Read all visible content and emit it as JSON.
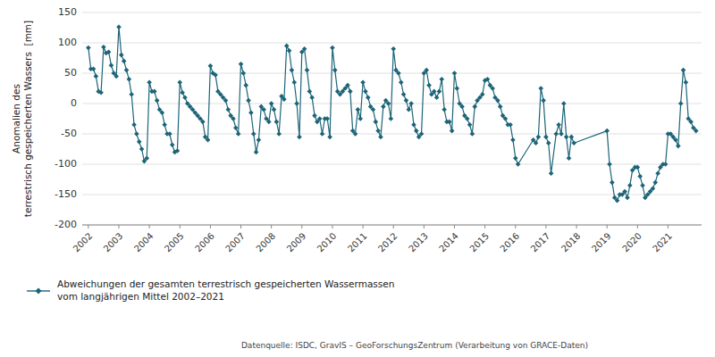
{
  "chart_data": {
    "type": "line",
    "ylabel": "Anomalien des\nterrestrisch gespeicherten Wassers  [mm]",
    "source": "Datenquelle: ISDC, GravIS – GeoForschungsZentrum (Verarbeitung von GRACE-Daten)",
    "x": [
      2002.0,
      2002.083,
      2002.167,
      2002.25,
      2002.333,
      2002.417,
      2002.5,
      2002.583,
      2002.667,
      2002.75,
      2002.833,
      2002.917,
      2003.0,
      2003.083,
      2003.167,
      2003.25,
      2003.333,
      2003.417,
      2003.5,
      2003.583,
      2003.667,
      2003.75,
      2003.833,
      2003.917,
      2004.0,
      2004.083,
      2004.167,
      2004.25,
      2004.333,
      2004.417,
      2004.5,
      2004.583,
      2004.667,
      2004.75,
      2004.833,
      2004.917,
      2005.0,
      2005.083,
      2005.167,
      2005.25,
      2005.333,
      2005.417,
      2005.5,
      2005.583,
      2005.667,
      2005.75,
      2005.833,
      2005.917,
      2006.0,
      2006.083,
      2006.167,
      2006.25,
      2006.333,
      2006.417,
      2006.5,
      2006.583,
      2006.667,
      2006.75,
      2006.833,
      2006.917,
      2007.0,
      2007.083,
      2007.167,
      2007.25,
      2007.333,
      2007.417,
      2007.5,
      2007.583,
      2007.667,
      2007.75,
      2007.833,
      2007.917,
      2008.0,
      2008.083,
      2008.167,
      2008.25,
      2008.333,
      2008.417,
      2008.5,
      2008.583,
      2008.667,
      2008.75,
      2008.833,
      2008.917,
      2009.0,
      2009.083,
      2009.167,
      2009.25,
      2009.333,
      2009.417,
      2009.5,
      2009.583,
      2009.667,
      2009.75,
      2009.833,
      2009.917,
      2010.0,
      2010.083,
      2010.167,
      2010.25,
      2010.333,
      2010.417,
      2010.5,
      2010.583,
      2010.667,
      2010.75,
      2010.833,
      2010.917,
      2011.0,
      2011.083,
      2011.167,
      2011.25,
      2011.333,
      2011.417,
      2011.5,
      2011.583,
      2011.667,
      2011.75,
      2011.833,
      2011.917,
      2012.0,
      2012.083,
      2012.167,
      2012.25,
      2012.333,
      2012.417,
      2012.5,
      2012.583,
      2012.667,
      2012.75,
      2012.833,
      2012.917,
      2013.0,
      2013.083,
      2013.167,
      2013.25,
      2013.333,
      2013.417,
      2013.5,
      2013.583,
      2013.667,
      2013.75,
      2013.833,
      2013.917,
      2014.0,
      2014.083,
      2014.167,
      2014.25,
      2014.333,
      2014.417,
      2014.5,
      2014.583,
      2014.667,
      2014.75,
      2014.833,
      2014.917,
      2015.0,
      2015.083,
      2015.167,
      2015.25,
      2015.333,
      2015.417,
      2015.5,
      2015.583,
      2015.667,
      2015.75,
      2015.833,
      2015.917,
      2016.0,
      2016.083,
      2016.583,
      2016.667,
      2016.75,
      2016.833,
      2016.917,
      2017.0,
      2017.083,
      2017.167,
      2017.333,
      2017.417,
      2017.5,
      2017.583,
      2017.667,
      2017.75,
      2017.833,
      2017.917,
      2019.0,
      2019.083,
      2019.167,
      2019.25,
      2019.333,
      2019.417,
      2019.5,
      2019.583,
      2019.667,
      2019.75,
      2019.833,
      2019.917,
      2020.0,
      2020.083,
      2020.167,
      2020.25,
      2020.333,
      2020.417,
      2020.5,
      2020.583,
      2020.667,
      2020.75,
      2020.833,
      2020.917,
      2021.0,
      2021.083,
      2021.167,
      2021.25,
      2021.333,
      2021.417,
      2021.5,
      2021.583,
      2021.667,
      2021.75,
      2021.833,
      2021.917
    ],
    "series": [
      {
        "name": "Abweichungen der gesamten terrestrisch gespeicherten Wassermassen\nvom langjährigen Mittel 2002–2021",
        "color": "#1c6478",
        "marker": "diamond",
        "values": [
          92,
          57,
          57,
          45,
          20,
          18,
          93,
          83,
          85,
          63,
          50,
          45,
          126,
          80,
          70,
          55,
          40,
          15,
          -35,
          -50,
          -63,
          -75,
          -95,
          -90,
          35,
          20,
          20,
          5,
          -10,
          -15,
          -35,
          -50,
          -50,
          -68,
          -80,
          -78,
          35,
          18,
          10,
          0,
          -5,
          -10,
          -15,
          -20,
          -25,
          -30,
          -55,
          -60,
          62,
          50,
          47,
          20,
          15,
          10,
          5,
          -10,
          -20,
          -25,
          -40,
          -50,
          65,
          50,
          30,
          5,
          -15,
          -50,
          -80,
          -60,
          -5,
          -10,
          -25,
          -30,
          0,
          -10,
          -30,
          -50,
          12,
          7,
          95,
          87,
          55,
          35,
          0,
          -55,
          85,
          90,
          55,
          20,
          10,
          -20,
          -30,
          -25,
          -50,
          -25,
          -25,
          -55,
          92,
          55,
          20,
          15,
          20,
          25,
          30,
          20,
          -45,
          -50,
          -10,
          -25,
          35,
          20,
          10,
          -5,
          -10,
          -30,
          -45,
          -55,
          -5,
          5,
          0,
          -25,
          90,
          55,
          50,
          35,
          15,
          5,
          -10,
          0,
          -35,
          -45,
          -55,
          -50,
          50,
          55,
          30,
          15,
          20,
          10,
          20,
          40,
          -10,
          -30,
          -30,
          -45,
          50,
          25,
          0,
          -5,
          -20,
          -25,
          -35,
          -50,
          -5,
          5,
          10,
          15,
          38,
          40,
          30,
          25,
          10,
          5,
          -5,
          -20,
          -25,
          -35,
          -35,
          -60,
          -90,
          -100,
          -60,
          -65,
          -55,
          25,
          5,
          -55,
          -65,
          -115,
          -50,
          -35,
          -50,
          0,
          -55,
          -90,
          -55,
          -65,
          -45,
          -100,
          -130,
          -155,
          -160,
          -150,
          -150,
          -145,
          -155,
          -135,
          -110,
          -105,
          -105,
          -120,
          -135,
          -155,
          -150,
          -145,
          -140,
          -130,
          -115,
          -105,
          -100,
          -100,
          -50,
          -50,
          -55,
          -60,
          -70,
          0,
          55,
          35,
          -25,
          -30,
          -40,
          -45
        ]
      }
    ],
    "xlim": [
      2001.8,
      2022.1
    ],
    "xticks": [
      2002,
      2003,
      2004,
      2005,
      2006,
      2007,
      2008,
      2009,
      2010,
      2011,
      2012,
      2013,
      2014,
      2015,
      2016,
      2017,
      2018,
      2019,
      2020,
      2021
    ],
    "ylim": [
      -200,
      150
    ],
    "yticks": [
      -200,
      -150,
      -100,
      -50,
      0,
      50,
      100,
      150
    ],
    "grid": true,
    "legend": "bottom"
  }
}
